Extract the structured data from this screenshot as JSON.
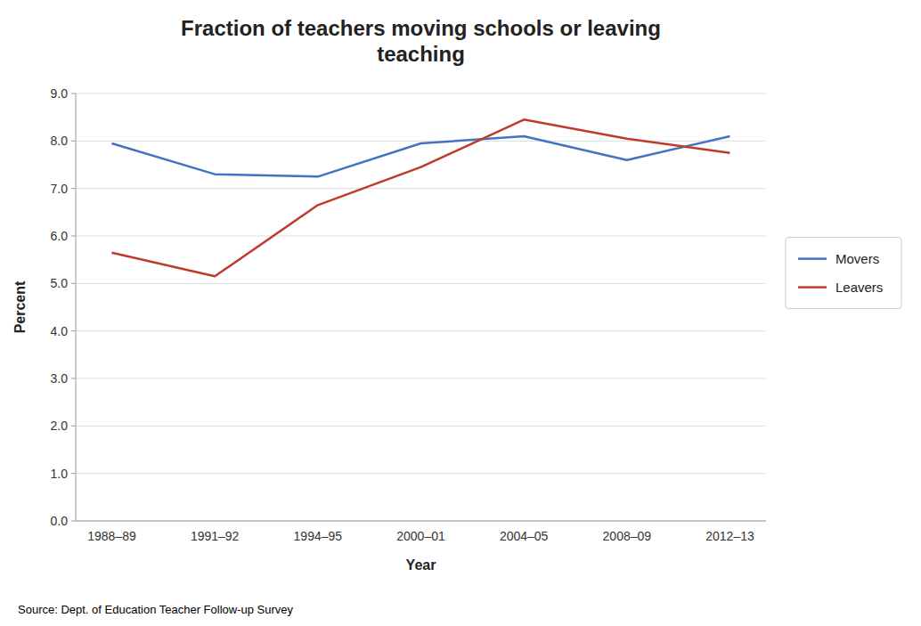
{
  "chart_data": {
    "type": "line",
    "title": "Fraction of teachers moving schools or leaving\nteaching",
    "x_label": "Year",
    "y_label": "Percent",
    "source": "Source: Dept. of Education Teacher Follow-up Survey",
    "categories": [
      "1988–89",
      "1991–92",
      "1994–95",
      "2000–01",
      "2004–05",
      "2008–09",
      "2012–13"
    ],
    "series": [
      {
        "name": "Movers",
        "color": "#4472C4",
        "values": [
          7.95,
          7.3,
          7.25,
          7.95,
          8.1,
          7.6,
          8.1
        ]
      },
      {
        "name": "Leavers",
        "color": "#BE3B2A",
        "values": [
          5.65,
          5.15,
          6.65,
          7.45,
          8.45,
          8.05,
          7.75
        ]
      }
    ],
    "ylim": [
      0.0,
      9.0
    ],
    "yticks": [
      {
        "value": 0,
        "label": "0.0"
      },
      {
        "value": 1,
        "label": "1.0"
      },
      {
        "value": 2,
        "label": "2.0"
      },
      {
        "value": 3,
        "label": "3.0"
      },
      {
        "value": 4,
        "label": "4.0"
      },
      {
        "value": 5,
        "label": "5.0"
      },
      {
        "value": 6,
        "label": "6.0"
      },
      {
        "value": 7,
        "label": "7.0"
      },
      {
        "value": 8,
        "label": "8.0"
      },
      {
        "value": 9,
        "label": "9.0"
      }
    ],
    "grid": true,
    "legend": "right"
  }
}
